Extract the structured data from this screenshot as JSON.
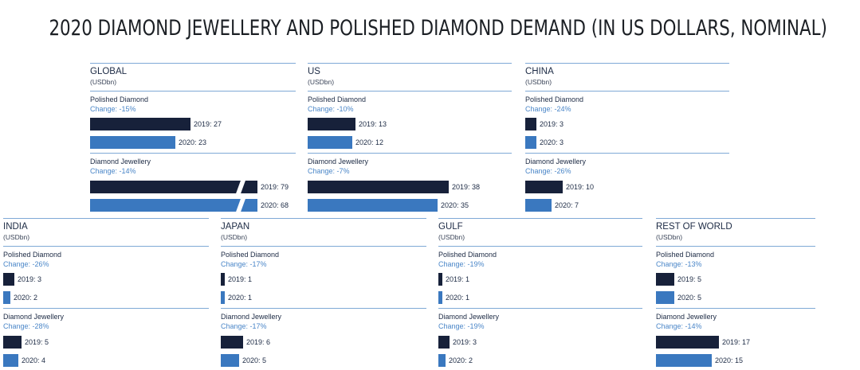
{
  "title": "2020 DIAMOND JEWELLERY AND POLISHED DIAMOND DEMAND (IN US DOLLARS, NOMINAL)",
  "labels": {
    "polished": "Polished Diamond",
    "jewellery": "Diamond Jewellery",
    "prefix_2019": "2019: ",
    "prefix_2020": "2020: "
  },
  "colors": {
    "y2019": "#17213a",
    "y2020": "#3a78bf",
    "rule": "#7fa9d6",
    "change_text": "#4a86c8"
  },
  "chart_data": {
    "type": "bar",
    "orientation": "horizontal",
    "unit": "(USDbn)",
    "series": [
      {
        "name": "2019"
      },
      {
        "name": "2020"
      }
    ],
    "regions": [
      {
        "name": "GLOBAL",
        "unit": "(USDbn)",
        "polished": {
          "change": "Change: -15%",
          "v2019": 27,
          "v2020": 23
        },
        "jewellery": {
          "change": "Change: -14%",
          "v2019": 79,
          "v2020": 68,
          "axis_break": true
        }
      },
      {
        "name": "US",
        "unit": "(USDbn)",
        "polished": {
          "change": "Change: -10%",
          "v2019": 13,
          "v2020": 12
        },
        "jewellery": {
          "change": "Change: -7%",
          "v2019": 38,
          "v2020": 35
        }
      },
      {
        "name": "CHINA",
        "unit": "(USDbn)",
        "polished": {
          "change": "Change: -24%",
          "v2019": 3,
          "v2020": 3
        },
        "jewellery": {
          "change": "Change: -26%",
          "v2019": 10,
          "v2020": 7
        }
      },
      {
        "name": "INDIA",
        "unit": "(USDbn)",
        "polished": {
          "change": "Change: -26%",
          "v2019": 3,
          "v2020": 2
        },
        "jewellery": {
          "change": "Change: -28%",
          "v2019": 5,
          "v2020": 4
        }
      },
      {
        "name": "JAPAN",
        "unit": "(USDbn)",
        "polished": {
          "change": "Change: -17%",
          "v2019": 1,
          "v2020": 1
        },
        "jewellery": {
          "change": "Change: -17%",
          "v2019": 6,
          "v2020": 5
        }
      },
      {
        "name": "GULF",
        "unit": "(USDbn)",
        "polished": {
          "change": "Change: -19%",
          "v2019": 1,
          "v2020": 1
        },
        "jewellery": {
          "change": "Change: -19%",
          "v2019": 3,
          "v2020": 2
        }
      },
      {
        "name": "REST OF WORLD",
        "unit": "(USDbn)",
        "polished": {
          "change": "Change: -13%",
          "v2019": 5,
          "v2020": 5
        },
        "jewellery": {
          "change": "Change: -14%",
          "v2019": 17,
          "v2020": 15
        }
      }
    ]
  }
}
